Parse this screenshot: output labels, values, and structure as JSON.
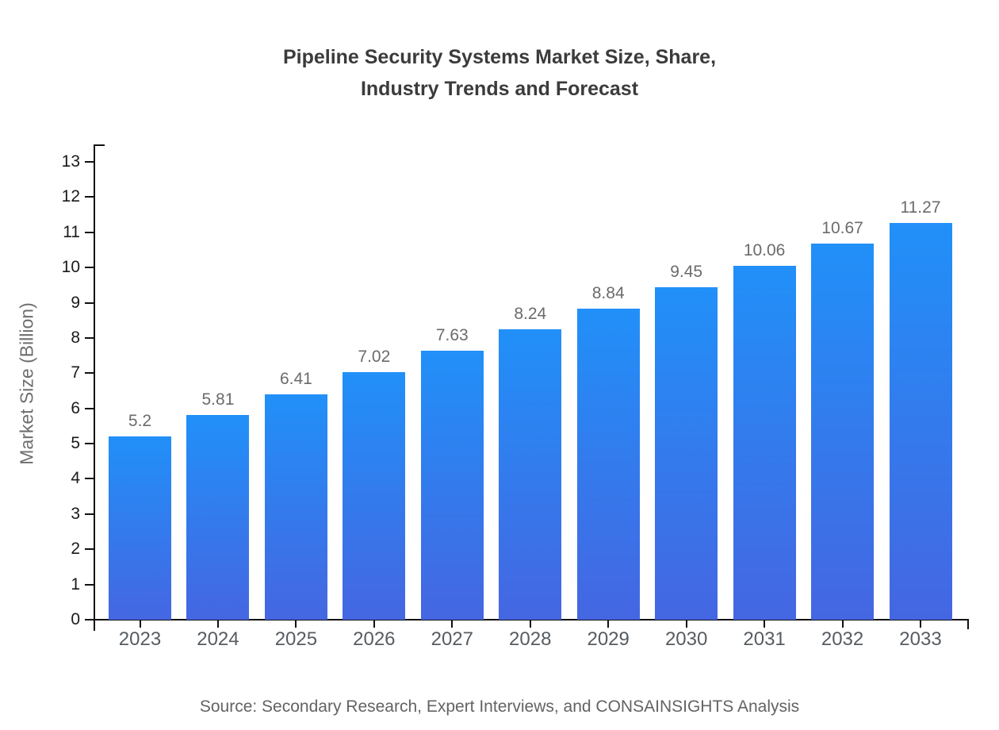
{
  "title": "Pipeline Security Systems Market Size, Share,\nIndustry Trends and Forecast",
  "source_note": "Source: Secondary Research, Expert Interviews, and CONSAINSIGHTS Analysis",
  "colors": {
    "bar_gradient_top": "#2190f8",
    "bar_gradient_bottom": "#4566e2",
    "axis": "#111111",
    "title_text": "#3b3b3b",
    "value_label_text": "#6b6b6b",
    "tick_label_text": "#1a1a1a",
    "year_label_text": "#575c61",
    "source_text": "#636363"
  },
  "chart_data": {
    "type": "bar",
    "title": "Pipeline Security Systems Market Size, Share, Industry Trends and Forecast",
    "categories": [
      "2023",
      "2024",
      "2025",
      "2026",
      "2027",
      "2028",
      "2029",
      "2030",
      "2031",
      "2032",
      "2033"
    ],
    "values": [
      5.2,
      5.81,
      6.41,
      7.02,
      7.63,
      8.24,
      8.84,
      9.45,
      10.06,
      10.67,
      11.27
    ],
    "value_labels": [
      "5.2",
      "5.81",
      "6.41",
      "7.02",
      "7.63",
      "8.24",
      "8.84",
      "9.45",
      "10.06",
      "10.67",
      "11.27"
    ],
    "xlabel": "",
    "ylabel": "Market Size (Billion)",
    "ylim": [
      0,
      13
    ],
    "ytick_step": 1,
    "grid": false,
    "legend": "none",
    "bar_value_labels_shown": true
  }
}
